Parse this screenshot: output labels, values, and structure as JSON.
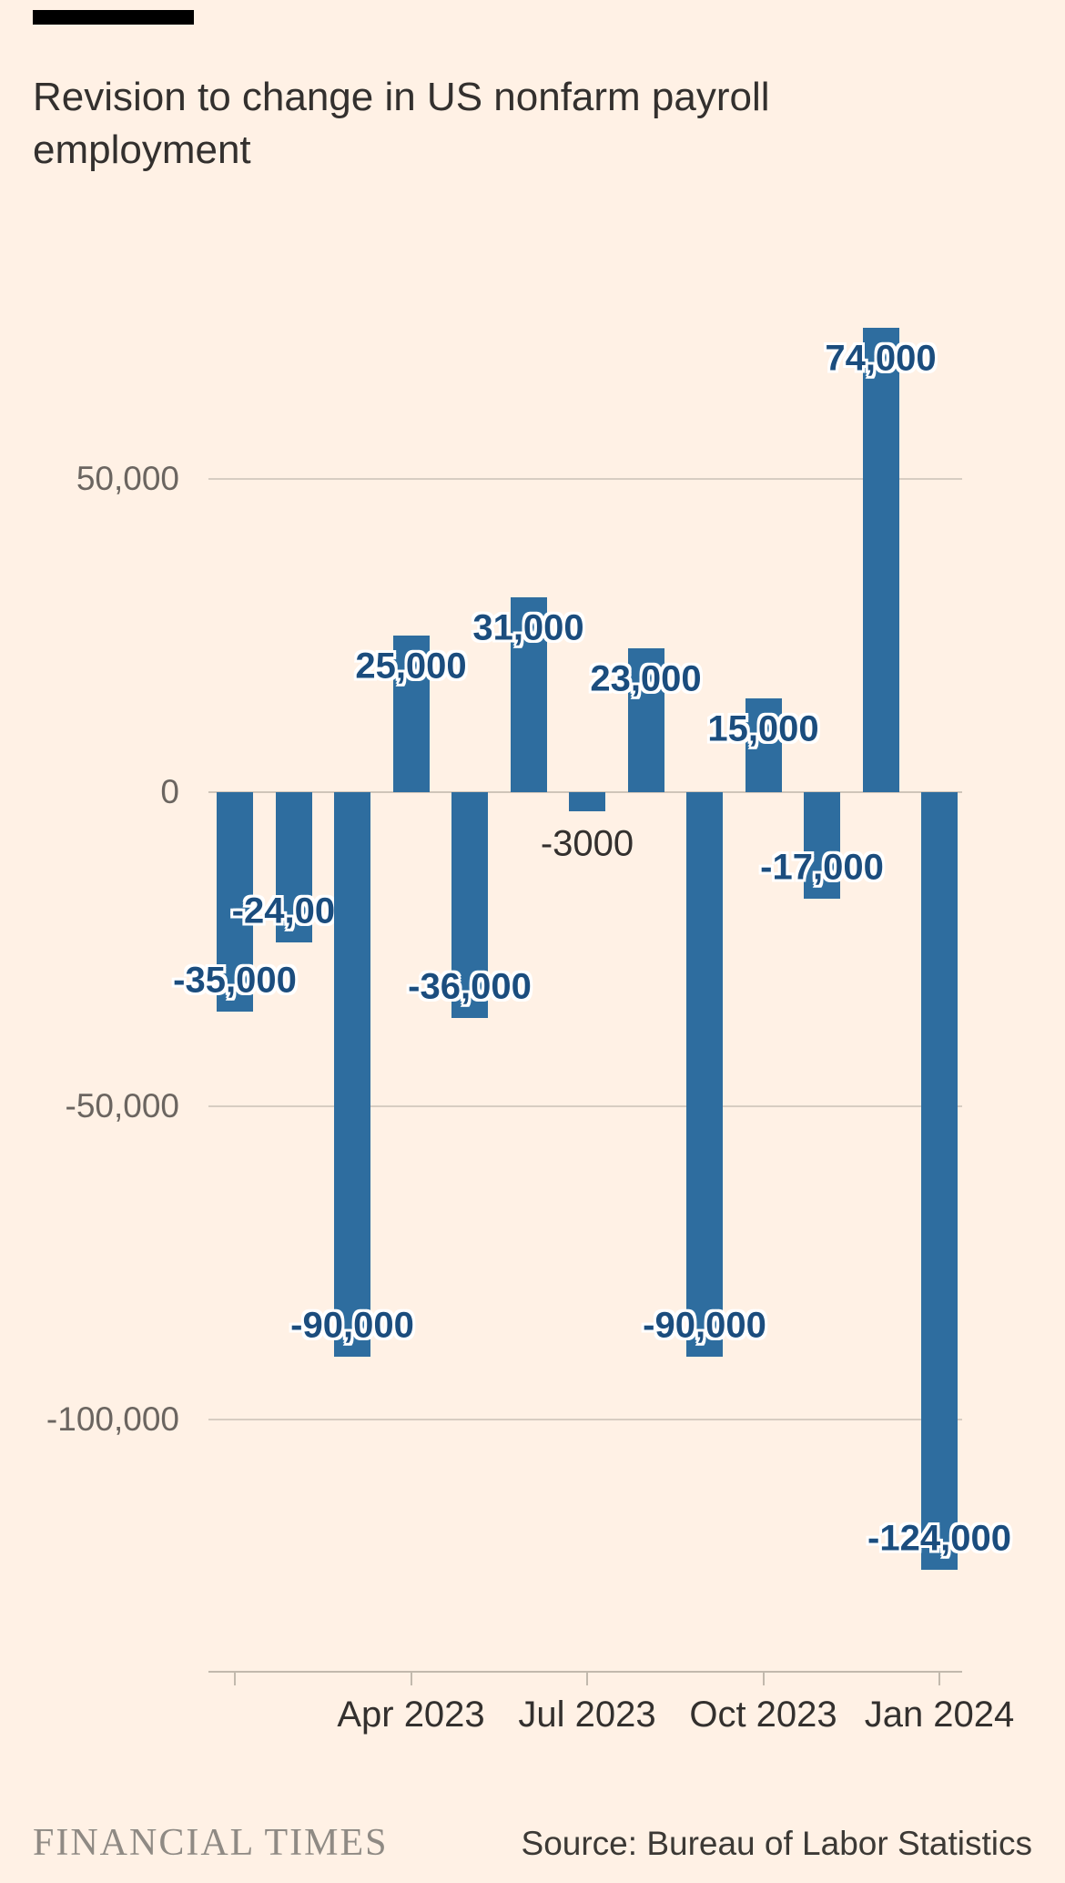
{
  "header": {
    "title_line1": "Revision to change in US nonfarm payroll",
    "title_line2": "employment"
  },
  "chart_data": {
    "type": "bar",
    "title": "Revision to change in US nonfarm payroll employment",
    "values": [
      -35000,
      -24000,
      -90000,
      25000,
      -36000,
      31000,
      -3000,
      23000,
      -90000,
      15000,
      -17000,
      74000,
      -124000
    ],
    "bar_labels": [
      "-35,000",
      "-24,000",
      "-90,000",
      "25,000",
      "-36,000",
      "31,000",
      "-3000",
      "23,000",
      "-90,000",
      "15,000",
      "-17,000",
      "74,000",
      "-124,000"
    ],
    "y_ticks": [
      50000,
      0,
      -50000,
      -100000
    ],
    "y_tick_labels": [
      "50,000",
      "0",
      "-50,000",
      "-100,000"
    ],
    "x_ticks": [
      {
        "bar_index": 0,
        "label": ""
      },
      {
        "bar_index": 3,
        "label": "Apr 2023"
      },
      {
        "bar_index": 6,
        "label": "Jul 2023"
      },
      {
        "bar_index": 9,
        "label": "Oct 2023"
      },
      {
        "bar_index": 12,
        "label": "Jan 2024"
      }
    ],
    "ylim": [
      -135000,
      90000
    ],
    "grid": true,
    "legend": "none",
    "bar_color": "#2e6d9f",
    "value_label_color": "#1b4d7e",
    "background_color": "#fff1e5"
  },
  "footer": {
    "brand": "FINANCIAL TIMES",
    "source": "Source: Bureau of Labor Statistics"
  }
}
